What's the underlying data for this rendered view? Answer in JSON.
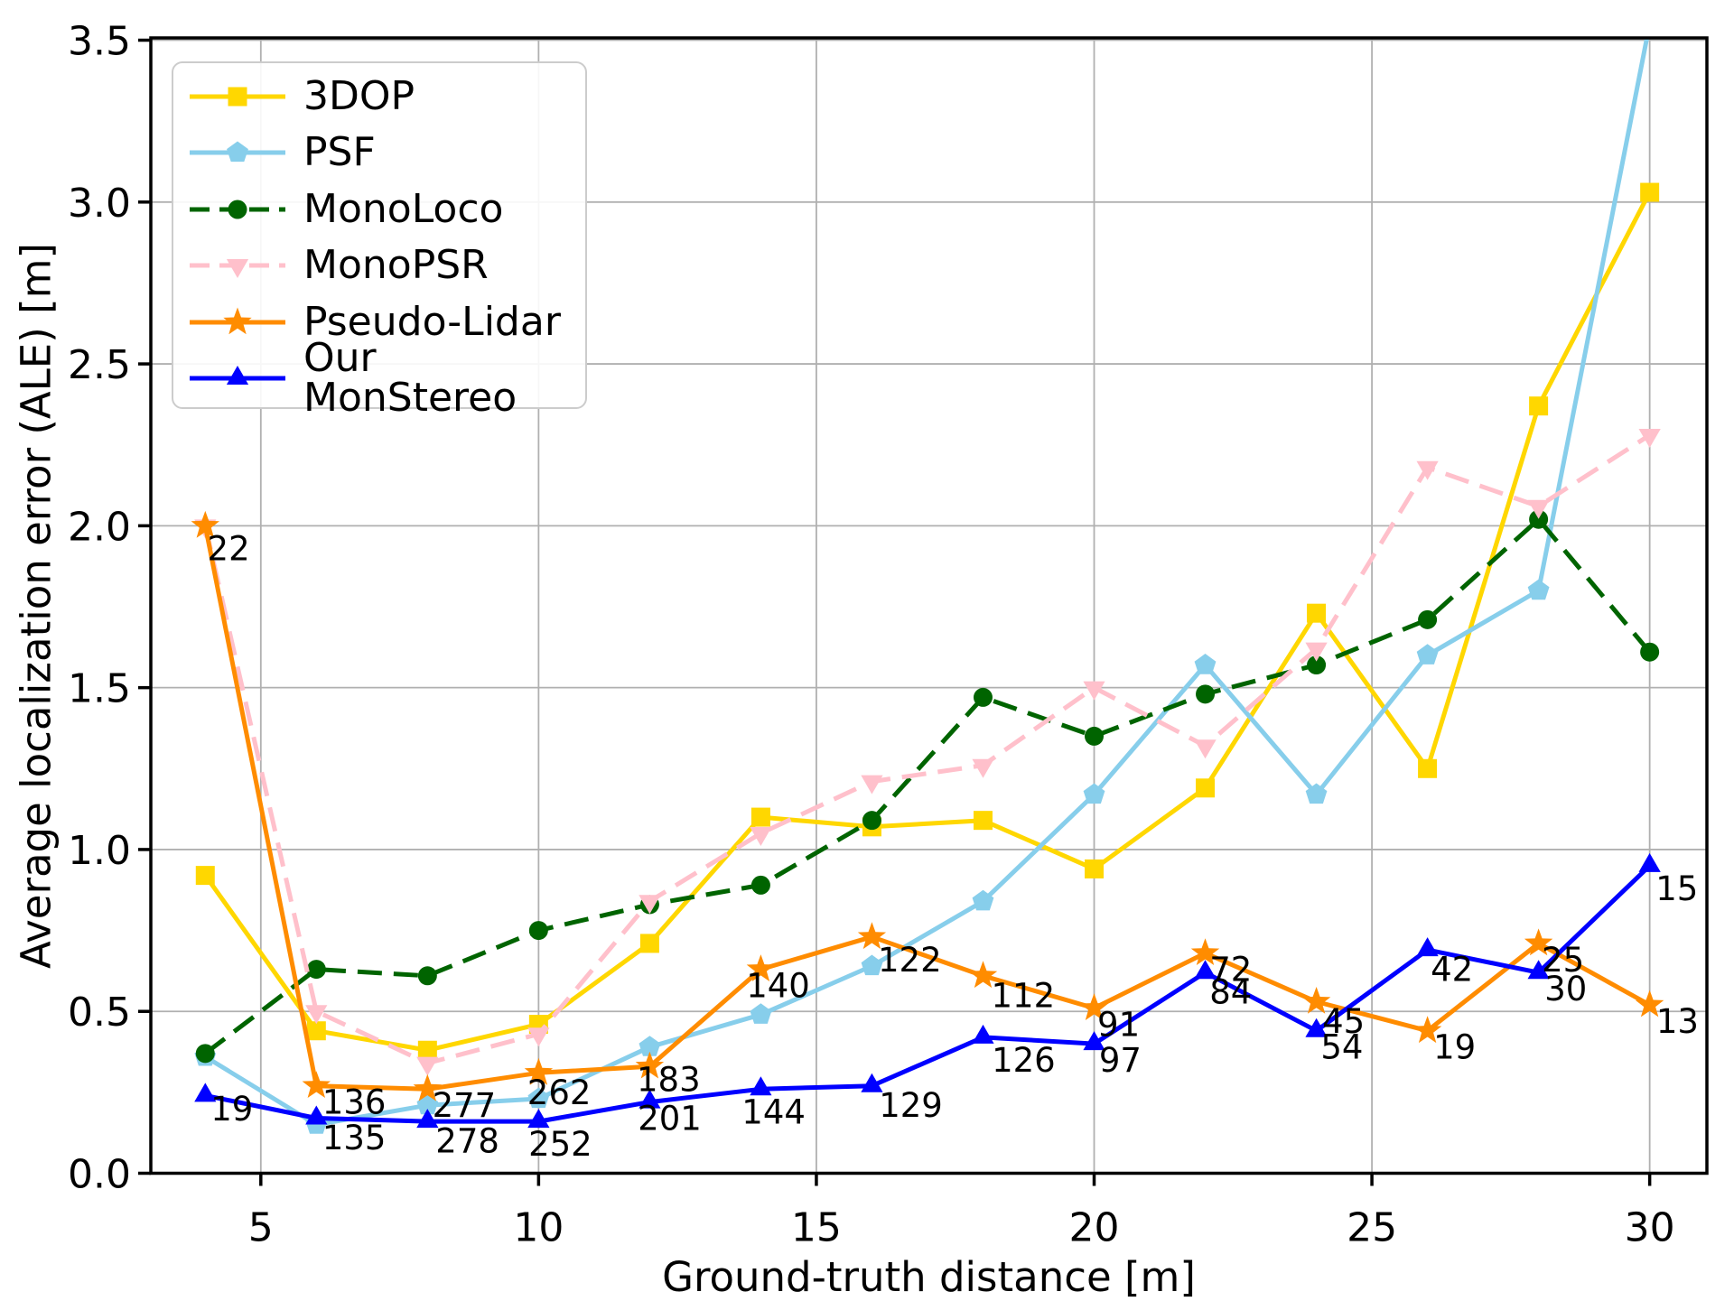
{
  "figure": {
    "background": "#ffffff",
    "grid_color": "#b0b0b0",
    "spine_color": "#000000",
    "text_color": "#000000"
  },
  "chart_data": {
    "type": "line",
    "title": "",
    "xlabel": "Ground-truth distance [m]",
    "ylabel": "Average localization error (ALE) [m]",
    "grid": true,
    "legend_position": "upper-left",
    "x": [
      4,
      6,
      8,
      10,
      12,
      14,
      16,
      18,
      20,
      22,
      24,
      26,
      28,
      30
    ],
    "xlim": [
      3.02,
      31.03
    ],
    "ylim": [
      0,
      3.507
    ],
    "xticks": [
      5,
      10,
      15,
      20,
      25,
      30
    ],
    "yticks": [
      0.0,
      0.5,
      1.0,
      1.5,
      2.0,
      2.5,
      3.0,
      3.5
    ],
    "series": [
      {
        "name": "3DOP",
        "color": "#FFD700",
        "marker": "square",
        "line": "solid",
        "values": [
          0.92,
          0.44,
          0.38,
          0.46,
          0.71,
          1.1,
          1.07,
          1.09,
          0.94,
          1.19,
          1.73,
          1.25,
          2.37,
          3.03
        ]
      },
      {
        "name": "PSF",
        "color": "#87CEEB",
        "marker": "pentagon",
        "line": "solid",
        "values": [
          0.36,
          0.15,
          0.21,
          0.23,
          0.39,
          0.49,
          0.64,
          0.84,
          1.17,
          1.57,
          1.17,
          1.6,
          1.8,
          3.55
        ]
      },
      {
        "name": "MonoLoco",
        "color": "#006400",
        "marker": "circle",
        "line": "dashed",
        "values": [
          0.37,
          0.63,
          0.61,
          0.75,
          0.83,
          0.89,
          1.09,
          1.47,
          1.35,
          1.48,
          1.57,
          1.71,
          2.02,
          1.61
        ]
      },
      {
        "name": "MonoPSR",
        "color": "#FFC0CB",
        "marker": "triangle-down",
        "line": "dashed",
        "values": [
          2.0,
          0.5,
          0.34,
          0.43,
          0.84,
          1.05,
          1.21,
          1.26,
          1.5,
          1.32,
          1.62,
          2.18,
          2.06,
          2.28
        ]
      },
      {
        "name": "Pseudo-Lidar",
        "color": "#FF8C00",
        "marker": "star",
        "line": "solid",
        "values": [
          2.0,
          0.27,
          0.26,
          0.31,
          0.33,
          0.63,
          0.73,
          0.61,
          0.51,
          0.68,
          0.53,
          0.44,
          0.71,
          0.52
        ]
      },
      {
        "name": "Our MonStereo",
        "color": "#0000FF",
        "marker": "triangle-up",
        "line": "solid",
        "values": [
          0.24,
          0.17,
          0.16,
          0.16,
          0.22,
          0.26,
          0.27,
          0.42,
          0.4,
          0.62,
          0.44,
          0.69,
          0.62,
          0.95
        ]
      }
    ],
    "annotations": [
      {
        "text": "22",
        "x": 4.42,
        "y": 1.93
      },
      {
        "text": "19",
        "x": 4.48,
        "y": 0.2
      },
      {
        "text": "136",
        "x": 6.68,
        "y": 0.22
      },
      {
        "text": "135",
        "x": 6.68,
        "y": 0.11
      },
      {
        "text": "277",
        "x": 8.66,
        "y": 0.21
      },
      {
        "text": "278",
        "x": 8.72,
        "y": 0.1
      },
      {
        "text": "262",
        "x": 10.37,
        "y": 0.25
      },
      {
        "text": "252",
        "x": 10.39,
        "y": 0.09
      },
      {
        "text": "183",
        "x": 12.34,
        "y": 0.29
      },
      {
        "text": "201",
        "x": 12.36,
        "y": 0.17
      },
      {
        "text": "140",
        "x": 14.31,
        "y": 0.58
      },
      {
        "text": "144",
        "x": 14.23,
        "y": 0.19
      },
      {
        "text": "122",
        "x": 16.68,
        "y": 0.66
      },
      {
        "text": "129",
        "x": 16.7,
        "y": 0.21
      },
      {
        "text": "112",
        "x": 18.72,
        "y": 0.55
      },
      {
        "text": "126",
        "x": 18.73,
        "y": 0.35
      },
      {
        "text": "91",
        "x": 20.44,
        "y": 0.46
      },
      {
        "text": "97",
        "x": 20.47,
        "y": 0.35
      },
      {
        "text": "72",
        "x": 22.46,
        "y": 0.63
      },
      {
        "text": "84",
        "x": 22.46,
        "y": 0.56
      },
      {
        "text": "45",
        "x": 24.49,
        "y": 0.47
      },
      {
        "text": "54",
        "x": 24.46,
        "y": 0.39
      },
      {
        "text": "42",
        "x": 26.44,
        "y": 0.63
      },
      {
        "text": "19",
        "x": 26.49,
        "y": 0.39
      },
      {
        "text": "25",
        "x": 28.44,
        "y": 0.66
      },
      {
        "text": "30",
        "x": 28.49,
        "y": 0.57
      },
      {
        "text": "15",
        "x": 30.49,
        "y": 0.88
      },
      {
        "text": "13",
        "x": 30.5,
        "y": 0.47
      }
    ]
  }
}
